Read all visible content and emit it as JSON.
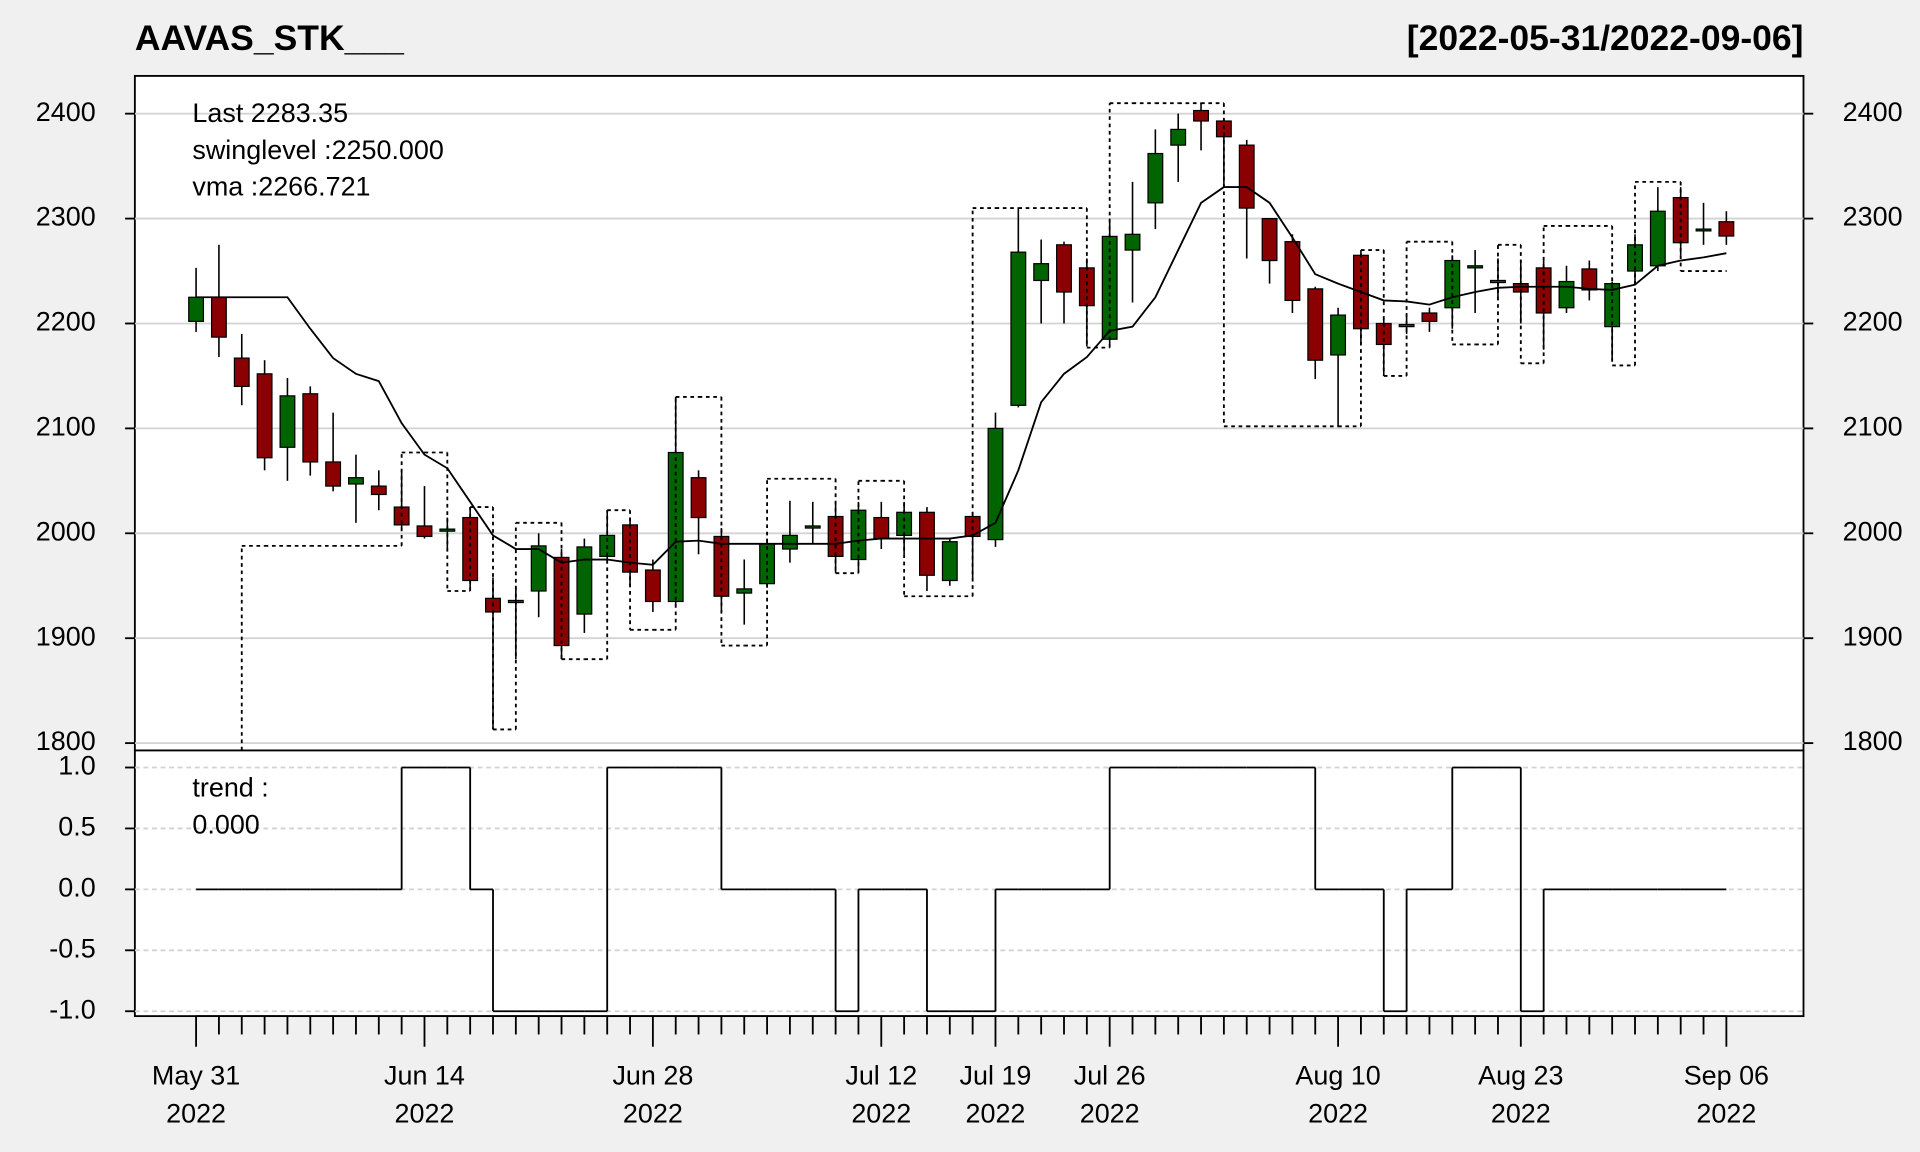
{
  "chart_data": [
    {
      "type": "candlestick",
      "title": "AAVAS_STK___",
      "subtitle": "[2022-05-31/2022-09-06]",
      "categories": [
        [
          "May 31",
          "2022"
        ],
        null,
        null,
        null,
        null,
        null,
        null,
        null,
        null,
        null,
        [
          "Jun 14",
          "2022"
        ],
        null,
        null,
        null,
        null,
        null,
        null,
        null,
        null,
        null,
        [
          "Jun 28",
          "2022"
        ],
        null,
        null,
        null,
        null,
        null,
        null,
        null,
        null,
        null,
        [
          "Jul 12",
          "2022"
        ],
        null,
        null,
        null,
        null,
        [
          "Jul 19",
          "2022"
        ],
        null,
        null,
        null,
        null,
        [
          "Jul 26",
          "2022"
        ],
        null,
        null,
        null,
        null,
        null,
        null,
        null,
        null,
        null,
        [
          "Aug 10",
          "2022"
        ],
        null,
        null,
        null,
        null,
        null,
        null,
        null,
        [
          "Aug 23",
          "2022"
        ],
        null,
        null,
        null,
        null,
        null,
        null,
        null,
        null,
        [
          "Sep 06",
          "2022"
        ]
      ],
      "open": [
        2202,
        2225,
        2167,
        2152,
        2082,
        2133,
        2068,
        2047,
        2045,
        2025,
        2007,
        2002,
        2015,
        1938,
        1934,
        1945,
        1977,
        1923,
        1978,
        2008,
        1965,
        1935,
        2053,
        1997,
        1943,
        1952,
        1985,
        2005,
        2016,
        1975,
        2015,
        1998,
        2020,
        1955,
        2016,
        1994,
        2122,
        2241,
        2275,
        2253,
        2185,
        2270,
        2315,
        2370,
        2403,
        2393,
        2370,
        2300,
        2278,
        2233,
        2170,
        2265,
        2200,
        2197,
        2210,
        2215,
        2253,
        2239,
        2238,
        2253,
        2215,
        2252,
        2197,
        2250,
        2255,
        2320,
        2289,
        2297
      ],
      "high": [
        2253,
        2275,
        2190,
        2165,
        2148,
        2140,
        2115,
        2075,
        2060,
        2060,
        2045,
        2015,
        2025,
        1958,
        1950,
        2000,
        1985,
        1995,
        2022,
        2015,
        1975,
        2130,
        2060,
        2005,
        1975,
        1995,
        2031,
        2030,
        2030,
        2030,
        2030,
        2030,
        2025,
        1995,
        2020,
        2115,
        2310,
        2280,
        2278,
        2262,
        2300,
        2335,
        2385,
        2400,
        2410,
        2395,
        2375,
        2300,
        2285,
        2235,
        2215,
        2270,
        2205,
        2210,
        2215,
        2265,
        2270,
        2262,
        2260,
        2260,
        2255,
        2260,
        2240,
        2285,
        2330,
        2330,
        2315,
        2307
      ],
      "low": [
        2192,
        2168,
        2122,
        2060,
        2050,
        2055,
        2040,
        2010,
        2022,
        2005,
        1995,
        1985,
        1945,
        1813,
        1880,
        1920,
        1880,
        1905,
        1972,
        1950,
        1925,
        1930,
        1980,
        1925,
        1913,
        1948,
        1972,
        1990,
        1962,
        1965,
        1985,
        1980,
        1945,
        1950,
        1957,
        1987,
        2120,
        2200,
        2200,
        2178,
        2180,
        2220,
        2290,
        2335,
        2365,
        2330,
        2262,
        2238,
        2210,
        2147,
        2102,
        2180,
        2150,
        2190,
        2192,
        2195,
        2210,
        2225,
        2200,
        2175,
        2210,
        2222,
        2165,
        2238,
        2250,
        2265,
        2275,
        2275
      ],
      "close": [
        2225,
        2187,
        2140,
        2072,
        2131,
        2068,
        2045,
        2053,
        2037,
        2008,
        1997,
        2004,
        1955,
        1925,
        1936,
        1988,
        1893,
        1987,
        1998,
        1963,
        1935,
        2077,
        2015,
        1940,
        1947,
        1990,
        1998,
        2007,
        1978,
        2022,
        1995,
        2020,
        1960,
        1992,
        1997,
        2100,
        2268,
        2257,
        2230,
        2217,
        2283,
        2285,
        2362,
        2385,
        2393,
        2378,
        2310,
        2260,
        2222,
        2165,
        2208,
        2195,
        2180,
        2199,
        2202,
        2260,
        2255,
        2241,
        2230,
        2210,
        2240,
        2232,
        2238,
        2275,
        2307,
        2277,
        2290,
        2283.35
      ],
      "up_color": "#006400",
      "down_color": "#8b0000",
      "swinglevel": [
        null,
        null,
        1988,
        1988,
        1988,
        1988,
        1988,
        1988,
        1988,
        2077,
        2077,
        1945,
        2025,
        1813,
        2010,
        2010,
        1880,
        1880,
        2022,
        1908,
        1908,
        2130,
        2130,
        1893,
        1893,
        2052,
        2052,
        2052,
        1962,
        2050,
        2050,
        1940,
        1940,
        1940,
        2310,
        2310,
        2310,
        2310,
        2310,
        2177,
        2410,
        2410,
        2410,
        2410,
        2410,
        2102,
        2102,
        2102,
        2102,
        2102,
        2102,
        2270,
        2150,
        2278,
        2278,
        2180,
        2180,
        2275,
        2162,
        2293,
        2293,
        2293,
        2160,
        2335,
        2335,
        2250,
        2250,
        2250
      ],
      "vma": [
        2225,
        2225,
        2225,
        2225,
        2225,
        2195,
        2167,
        2152,
        2145,
        2105,
        2075,
        2062,
        2030,
        1998,
        1985,
        1985,
        1972,
        1975,
        1975,
        1972,
        1970,
        1992,
        1993,
        1990,
        1990,
        1990,
        1990,
        1990,
        1990,
        1993,
        1995,
        1995,
        1995,
        1995,
        1998,
        2010,
        2060,
        2125,
        2152,
        2168,
        2193,
        2197,
        2225,
        2270,
        2315,
        2330,
        2330,
        2315,
        2282,
        2247,
        2238,
        2230,
        2222,
        2221,
        2218,
        2225,
        2230,
        2234,
        2235,
        2235,
        2235,
        2233,
        2232,
        2237,
        2255,
        2260,
        2263,
        2267
      ],
      "ylim": [
        1793,
        2436
      ],
      "yticks": [
        1800,
        1900,
        2000,
        2100,
        2200,
        2300,
        2400
      ],
      "grid": true,
      "annotations": [
        "Last 2283.35",
        "swinglevel :2250.000",
        "vma :2266.721"
      ],
      "annotation_colors": [
        "#8b0000",
        "#000000",
        "#000000"
      ]
    },
    {
      "type": "step",
      "values": [
        0,
        0,
        0,
        0,
        0,
        0,
        0,
        0,
        0,
        1,
        1,
        1,
        0,
        -1,
        -1,
        -1,
        -1,
        -1,
        1,
        1,
        1,
        1,
        1,
        0,
        0,
        0,
        0,
        0,
        -1,
        0,
        0,
        0,
        -1,
        -1,
        -1,
        0,
        0,
        0,
        0,
        0,
        1,
        1,
        1,
        1,
        1,
        1,
        1,
        1,
        1,
        0,
        0,
        0,
        -1,
        0,
        0,
        1,
        1,
        1,
        -1,
        0,
        0,
        0,
        0,
        0,
        0,
        0,
        0,
        0
      ],
      "ylim": [
        -1.04,
        1.14
      ],
      "yticks": [
        {
          "value": 1,
          "label": "1.0"
        },
        0.5,
        {
          "value": 0,
          "label": "0.0"
        },
        -0.5,
        {
          "value": -1,
          "label": "-1.0"
        }
      ],
      "grid": true,
      "annotations": [
        "trend :",
        "0.000"
      ]
    }
  ]
}
